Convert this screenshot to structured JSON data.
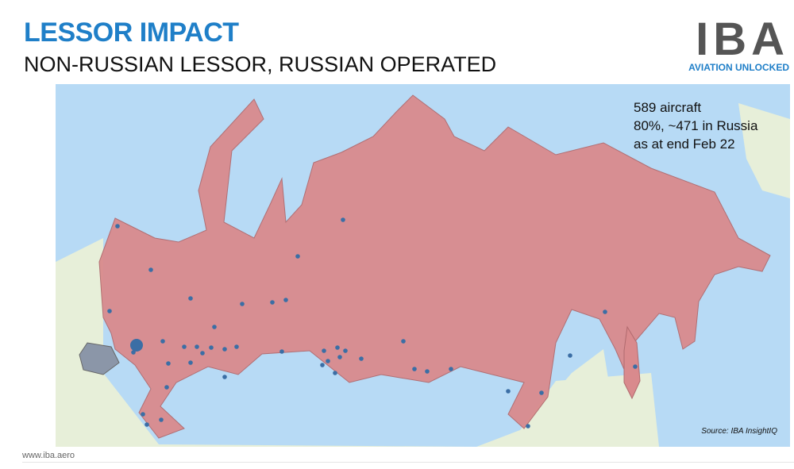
{
  "header": {
    "title": "LESSOR IMPACT",
    "subtitle": "NON-RUSSIAN LESSOR, RUSSIAN OPERATED"
  },
  "logo": {
    "mark": "IBA",
    "tagline": "AVIATION UNLOCKED"
  },
  "map": {
    "stats": [
      "589 aircraft",
      "80%, ~471 in Russia",
      "as at end Feb 22"
    ],
    "source": "Source: IBA InsightIQ",
    "colors": {
      "russia": "#d98a8d",
      "belarus": "#8b96a8",
      "water": "#b7daf5",
      "land": "#e7efd9",
      "dots": "#3b6ea5"
    }
  },
  "footer": {
    "url": "www.iba.aero"
  }
}
